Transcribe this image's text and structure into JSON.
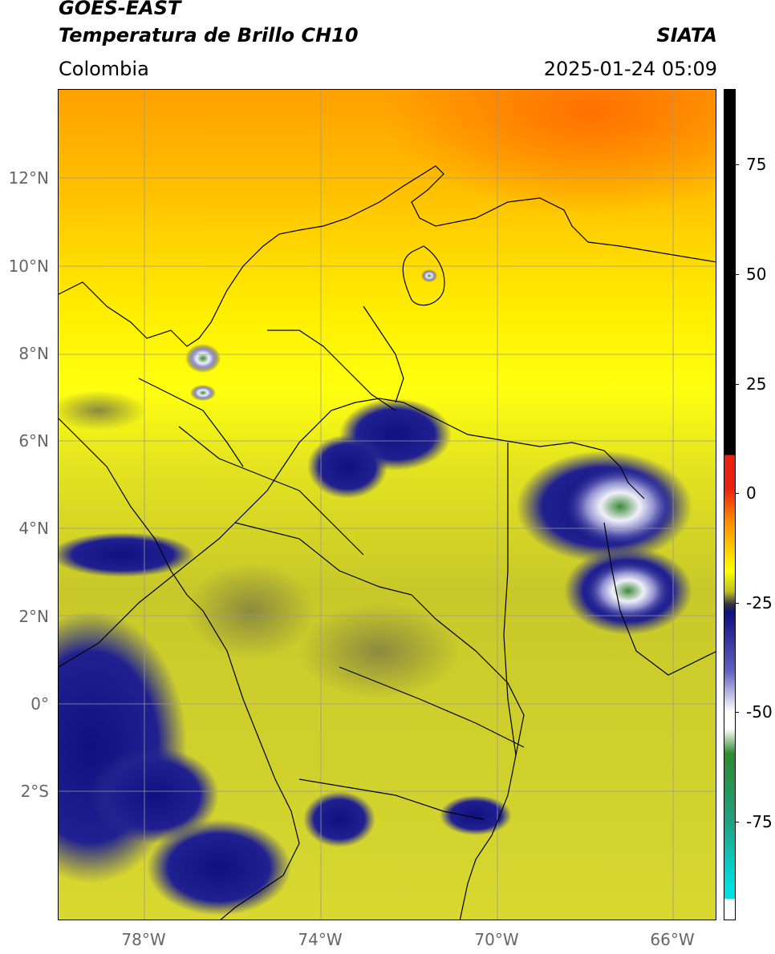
{
  "header": {
    "title_line1": "GOES-EAST",
    "title_line2": "Temperatura de Brillo CH10",
    "source": "SIATA",
    "region": "Colombia",
    "datetime": "2025-01-24 05:09"
  },
  "map": {
    "lat_labels": [
      "12°N",
      "10°N",
      "8°N",
      "6°N",
      "4°N",
      "2°N",
      "0°",
      "2°S"
    ],
    "lon_labels": [
      "78°W",
      "74°W",
      "70°W",
      "66°W"
    ],
    "coastline_color": "#000000",
    "grid_color": "#999999"
  },
  "colorbar": {
    "labels": [
      "75",
      "50",
      "25",
      "0",
      "-25",
      "-50",
      "-75"
    ],
    "colors": {
      "top": "#000000",
      "warm": "#e8200f",
      "orange": "#ff8c00",
      "yellow": "#ffff00",
      "olive": "#bdbd22",
      "navy": "#101080",
      "white": "#ffffff",
      "green": "#2e8b2e",
      "cyan": "#00e0e0"
    }
  }
}
